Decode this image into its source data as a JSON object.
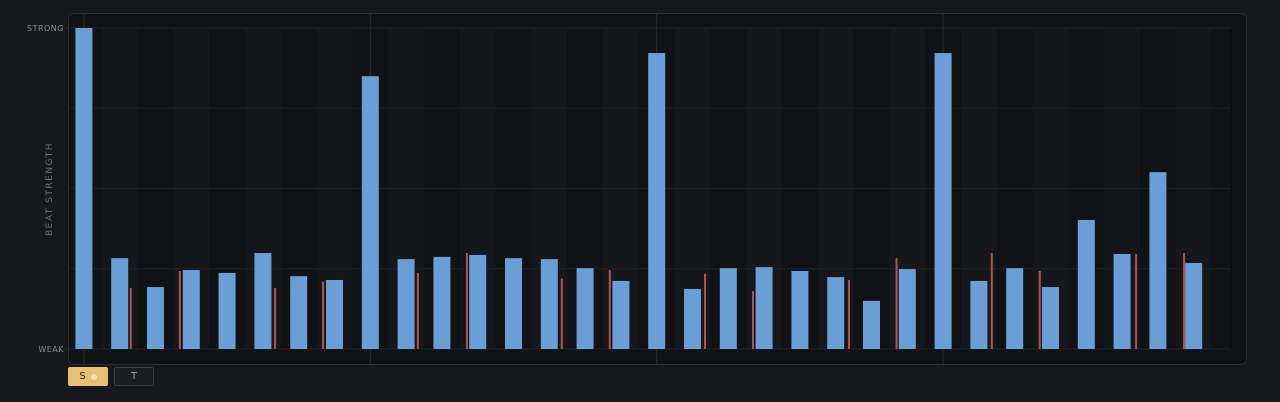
{
  "chart_data": {
    "type": "bar",
    "y_label": "BEAT STRENGTH",
    "x": [
      0,
      1,
      2,
      3,
      4,
      5,
      6,
      7,
      8,
      9,
      10,
      11,
      12,
      13,
      14,
      15,
      16,
      17,
      18,
      19,
      20,
      21,
      22,
      23,
      24,
      25,
      26,
      27,
      28,
      29,
      30,
      31
    ],
    "values": [
      1.0,
      0.283,
      0.193,
      0.246,
      0.237,
      0.299,
      0.227,
      0.215,
      0.85,
      0.28,
      0.287,
      0.293,
      0.283,
      0.28,
      0.252,
      0.212,
      0.922,
      0.187,
      0.252,
      0.255,
      0.243,
      0.224,
      0.15,
      0.249,
      0.922,
      0.212,
      0.252,
      0.193,
      0.402,
      0.296,
      0.551,
      0.268
    ],
    "color": "#6a9ed6",
    "markers": {
      "x": [
        1.31,
        2.68,
        5.34,
        6.68,
        9.33,
        10.7,
        13.35,
        14.69,
        17.35,
        18.69,
        21.37,
        22.7,
        25.36,
        26.7,
        29.39,
        30.73
      ],
      "values": [
        0.19,
        0.243,
        0.19,
        0.21,
        0.237,
        0.299,
        0.22,
        0.246,
        0.234,
        0.18,
        0.215,
        0.283,
        0.299,
        0.243,
        0.296,
        0.299
      ],
      "color": "#b4524f"
    },
    "xlim": [
      -0.5,
      31.5
    ],
    "ylim": [
      0,
      1
    ],
    "yticks": [
      {
        "value": 0,
        "label": "WEAK"
      },
      {
        "value": 1,
        "label": "STRONG"
      }
    ]
  },
  "controls": [
    {
      "label": "S",
      "active": true
    },
    {
      "label": "T",
      "active": false
    }
  ]
}
